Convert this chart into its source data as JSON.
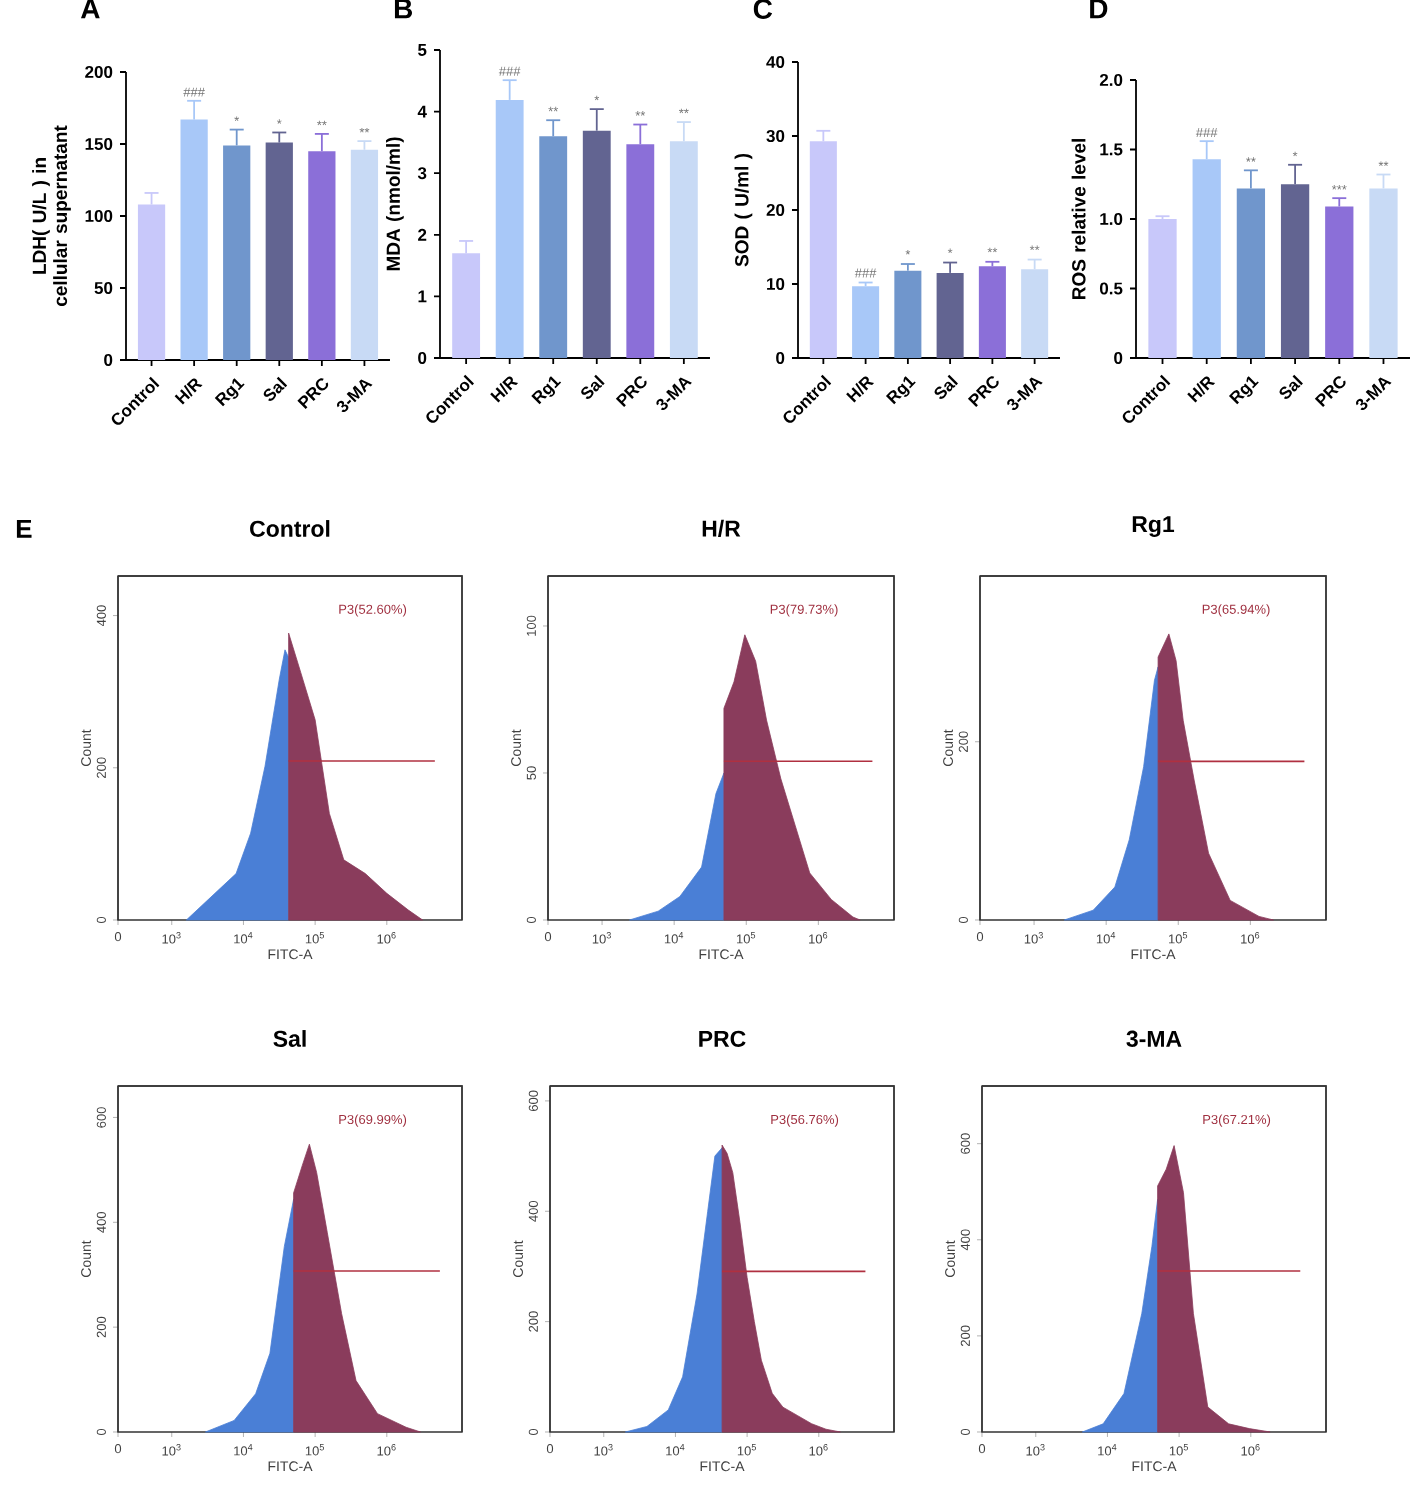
{
  "chart_data": [
    {
      "type": "bar",
      "title": "A",
      "ylabel": "LDH( U/L ) in cellular supernatant",
      "categories": [
        "Control",
        "H/R",
        "Rg1",
        "Sal",
        "PRC",
        "3-MA"
      ],
      "values": [
        108,
        167,
        149,
        151,
        145,
        146
      ],
      "colors": [
        "#c8c8fa",
        "#a8c8f8",
        "#7096cc",
        "#626491",
        "#8b6fd8",
        "#c8daf5"
      ],
      "errors": [
        [
          108,
          116
        ],
        [
          167,
          180
        ],
        [
          149,
          160
        ],
        [
          151,
          158
        ],
        [
          145,
          157
        ],
        [
          146,
          152
        ]
      ],
      "ylim": [
        0,
        200
      ],
      "yticks": [
        0,
        50,
        100,
        150,
        200
      ],
      "annotations": [
        {
          "text": "###",
          "x": "H/R",
          "y": 182
        },
        {
          "text": "*",
          "x": "Rg1",
          "y": 162
        },
        {
          "text": "*",
          "x": "Sal",
          "y": 160
        },
        {
          "text": "**",
          "x": "PRC",
          "y": 159
        },
        {
          "text": "**",
          "x": "3-MA",
          "y": 154
        }
      ]
    },
    {
      "type": "bar",
      "title": "B",
      "ylabel": "MDA (nmol/ml)",
      "categories": [
        "Control",
        "H/R",
        "Rg1",
        "Sal",
        "PRC",
        "3-MA"
      ],
      "values": [
        1.7,
        4.19,
        3.6,
        3.69,
        3.47,
        3.52
      ],
      "colors": [
        "#c8c8fa",
        "#a8c8f8",
        "#7096cc",
        "#626491",
        "#8b6fd8",
        "#c8daf5"
      ],
      "errors": [
        [
          1.7,
          1.9
        ],
        [
          4.19,
          4.51
        ],
        [
          3.6,
          3.86
        ],
        [
          3.69,
          4.04
        ],
        [
          3.47,
          3.79
        ],
        [
          3.52,
          3.83
        ]
      ],
      "ylim": [
        0,
        5
      ],
      "yticks": [
        0,
        1,
        2,
        3,
        4,
        5
      ],
      "annotations": [
        {
          "text": "###",
          "x": "H/R",
          "y": 4.56
        },
        {
          "text": "**",
          "x": "Rg1",
          "y": 3.91
        },
        {
          "text": "*",
          "x": "Sal",
          "y": 4.09
        },
        {
          "text": "**",
          "x": "PRC",
          "y": 3.84
        },
        {
          "text": "**",
          "x": "3-MA",
          "y": 3.88
        }
      ]
    },
    {
      "type": "bar",
      "title": "C",
      "ylabel": "SOD ( U/ml )",
      "categories": [
        "Control",
        "H/R",
        "Rg1",
        "Sal",
        "PRC",
        "3-MA"
      ],
      "values": [
        29.3,
        9.7,
        11.8,
        11.5,
        12.4,
        12.0
      ],
      "colors": [
        "#c8c8fa",
        "#a8c8f8",
        "#7096cc",
        "#626491",
        "#8b6fd8",
        "#c8daf5"
      ],
      "errors": [
        [
          29.3,
          30.7
        ],
        [
          9.7,
          10.2
        ],
        [
          11.8,
          12.7
        ],
        [
          11.5,
          12.9
        ],
        [
          12.4,
          13.0
        ],
        [
          12.0,
          13.3
        ]
      ],
      "ylim": [
        0,
        40
      ],
      "yticks": [
        0,
        10,
        20,
        30,
        40
      ],
      "annotations": [
        {
          "text": "###",
          "x": "H/R",
          "y": 10.7
        },
        {
          "text": "*",
          "x": "Rg1",
          "y": 13.2
        },
        {
          "text": "*",
          "x": "Sal",
          "y": 13.4
        },
        {
          "text": "**",
          "x": "PRC",
          "y": 13.5
        },
        {
          "text": "**",
          "x": "3-MA",
          "y": 13.8
        }
      ]
    },
    {
      "type": "bar",
      "title": "D",
      "ylabel": "ROS relative level",
      "categories": [
        "Control",
        "H/R",
        "Rg1",
        "Sal",
        "PRC",
        "3-MA"
      ],
      "values": [
        1.0,
        1.43,
        1.22,
        1.25,
        1.09,
        1.22
      ],
      "colors": [
        "#c8c8fa",
        "#a8c8f8",
        "#7096cc",
        "#626491",
        "#8b6fd8",
        "#c8daf5"
      ],
      "errors": [
        [
          1.0,
          1.02
        ],
        [
          1.43,
          1.56
        ],
        [
          1.22,
          1.35
        ],
        [
          1.25,
          1.39
        ],
        [
          1.09,
          1.15
        ],
        [
          1.22,
          1.32
        ]
      ],
      "ylim": [
        0,
        2
      ],
      "yticks": [
        0,
        0.5,
        {
          "value": 1,
          "label": "1.0"
        },
        1.5,
        {
          "value": 2,
          "label": "2.0"
        }
      ],
      "annotations": [
        {
          "text": "###",
          "x": "H/R",
          "y": 1.58
        },
        {
          "text": "**",
          "x": "Rg1",
          "y": 1.37
        },
        {
          "text": "*",
          "x": "Sal",
          "y": 1.41
        },
        {
          "text": "***",
          "x": "PRC",
          "y": 1.17
        },
        {
          "text": "**",
          "x": "3-MA",
          "y": 1.34
        }
      ]
    },
    {
      "type": "area",
      "title": "Control",
      "xlabel": "FITC-A",
      "ylabel": "Count",
      "log": "x",
      "xlim": [
        0,
        11200000
      ],
      "ylim": [
        0,
        452
      ],
      "xticks": [
        0,
        {
          "value": 1000,
          "label": "10$^{3}$"
        },
        {
          "value": 10000,
          "label": "10$^{4}$"
        },
        {
          "value": 100000,
          "label": "10$^{5}$"
        },
        {
          "value": 1000000,
          "label": "10$^{6}$"
        }
      ],
      "yticks": [
        0,
        200,
        400
      ],
      "series": [
        {
          "color": "#4a7fd6",
          "x": [
            1600,
            4000,
            7900,
            12600,
            20000,
            31600,
            38000,
            42700
          ],
          "values": [
            0,
            35,
            61,
            114,
            202,
            316,
            355,
            345
          ]
        },
        {
          "color": "#8a3c5c",
          "x": [
            42700,
            63100,
            100000,
            158000,
            251000,
            501000,
            1000000,
            2000000,
            3160000
          ],
          "values": [
            377,
            325,
            263,
            140,
            79,
            61,
            35,
            13,
            0
          ]
        },
        {
          "type": "line",
          "color": "#b03040",
          "x": [
            42700,
            4680000
          ],
          "values": [
            209,
            209
          ]
        }
      ],
      "annotations": [
        "E",
        "P3(52.60%)"
      ]
    },
    {
      "type": "area",
      "title": "H/R",
      "xlabel": "FITC-A",
      "ylabel": "Count",
      "log": "x",
      "xlim": [
        0,
        11200000
      ],
      "ylim": [
        0,
        117
      ],
      "xticks": [
        0,
        {
          "value": 1000,
          "label": "10$^{3}$"
        },
        {
          "value": 10000,
          "label": "10$^{4}$"
        },
        {
          "value": 100000,
          "label": "10$^{5}$"
        },
        {
          "value": 1000000,
          "label": "10$^{6}$"
        }
      ],
      "yticks": [
        0,
        50,
        100
      ],
      "series": [
        {
          "color": "#4a7fd6",
          "x": [
            2400,
            6000,
            12000,
            24000,
            38000,
            49000
          ],
          "values": [
            0,
            3,
            8,
            18,
            43,
            50
          ]
        },
        {
          "color": "#8a3c5c",
          "x": [
            49000,
            67600,
            95500,
            135000,
            191000,
            302000,
            479000,
            759000,
            1510000,
            3020000,
            3800000
          ],
          "values": [
            72,
            81,
            97,
            88,
            68,
            48,
            32,
            16,
            7,
            1,
            0
          ]
        },
        {
          "type": "line",
          "color": "#b03040",
          "x": [
            49000,
            5620000
          ],
          "values": [
            54,
            54
          ]
        }
      ],
      "annotations": [
        "P3(79.73%)"
      ]
    },
    {
      "type": "area",
      "title": "Rg1",
      "xlabel": "FITC-A",
      "ylabel": "Count",
      "log": "x",
      "xlim": [
        0,
        11200000
      ],
      "ylim": [
        0,
        386
      ],
      "xticks": [
        0,
        {
          "value": 1000,
          "label": "10$^{3}$"
        },
        {
          "value": 10000,
          "label": "10$^{4}$"
        },
        {
          "value": 100000,
          "label": "10$^{5}$"
        },
        {
          "value": 1000000,
          "label": "10$^{6}$"
        }
      ],
      "yticks": [
        0,
        200
      ],
      "series": [
        {
          "color": "#4a7fd6",
          "x": [
            2630,
            6610,
            13200,
            20900,
            33100,
            46800,
            52500
          ],
          "values": [
            0,
            11,
            37,
            90,
            172,
            269,
            284
          ]
        },
        {
          "color": "#8a3c5c",
          "x": [
            52500,
            74100,
            93300,
            117000,
            166000,
            263000,
            525000,
            1320000,
            2090000
          ],
          "values": [
            295,
            321,
            291,
            224,
            157,
            75,
            22,
            4,
            0
          ]
        },
        {
          "type": "line",
          "color": "#b03040",
          "x": [
            52500,
            5620000
          ],
          "values": [
            178,
            178
          ]
        }
      ],
      "annotations": [
        "P3(65.94%)"
      ]
    },
    {
      "type": "area",
      "title": "Sal",
      "xlabel": "FITC-A",
      "ylabel": "Count",
      "log": "x",
      "xlim": [
        0,
        11200000
      ],
      "ylim": [
        0,
        660
      ],
      "xticks": [
        0,
        {
          "value": 1000,
          "label": "10$^{3}$"
        },
        {
          "value": 10000,
          "label": "10$^{4}$"
        },
        {
          "value": 100000,
          "label": "10$^{5}$"
        },
        {
          "value": 1000000,
          "label": "10$^{6}$"
        }
      ],
      "yticks": [
        0,
        200,
        400,
        600
      ],
      "series": [
        {
          "color": "#4a7fd6",
          "x": [
            2950,
            7410,
            14800,
            23400,
            37200,
            50100
          ],
          "values": [
            0,
            22,
            73,
            150,
            354,
            444
          ]
        },
        {
          "color": "#8a3c5c",
          "x": [
            50100,
            66100,
            83200,
            105000,
            148000,
            234000,
            372000,
            741000,
            1860000,
            2950000
          ],
          "values": [
            456,
            508,
            549,
            495,
            380,
            226,
            98,
            35,
            9,
            0
          ]
        },
        {
          "type": "line",
          "color": "#b03040",
          "x": [
            50100,
            5500000
          ],
          "values": [
            307,
            307
          ]
        }
      ],
      "annotations": [
        "P3(69.99%)"
      ]
    },
    {
      "type": "area",
      "title": "PRC",
      "xlabel": "FITC-A",
      "ylabel": "Count",
      "log": "x",
      "xlim": [
        0,
        11200000
      ],
      "ylim": [
        0,
        627
      ],
      "xticks": [
        0,
        {
          "value": 1000,
          "label": "10$^{3}$"
        },
        {
          "value": 10000,
          "label": "10$^{4}$"
        },
        {
          "value": 100000,
          "label": "10$^{5}$"
        },
        {
          "value": 1000000,
          "label": "10$^{6}$"
        }
      ],
      "yticks": [
        0,
        200,
        400,
        600
      ],
      "series": [
        {
          "color": "#4a7fd6",
          "x": [
            2000,
            4000,
            7940,
            12600,
            20000,
            28200,
            35500,
            44700
          ],
          "values": [
            0,
            10,
            40,
            100,
            250,
            400,
            500,
            515
          ]
        },
        {
          "color": "#8a3c5c",
          "x": [
            44700,
            52500,
            63100,
            79400,
            100000,
            126000,
            158000,
            224000,
            316000,
            501000,
            794000,
            1260000,
            2000000
          ],
          "values": [
            520,
            505,
            470,
            380,
            280,
            200,
            130,
            70,
            45,
            30,
            15,
            5,
            0
          ]
        },
        {
          "type": "line",
          "color": "#b03040",
          "x": [
            44700,
            4470000
          ],
          "values": [
            291,
            291
          ]
        }
      ],
      "annotations": [
        "P3(56.76%)"
      ]
    },
    {
      "type": "area",
      "title": "3-MA",
      "xlabel": "FITC-A",
      "ylabel": "Count",
      "log": "x",
      "xlim": [
        0,
        11200000
      ],
      "ylim": [
        0,
        720
      ],
      "xticks": [
        0,
        {
          "value": 1000,
          "label": "10$^{3}$"
        },
        {
          "value": 10000,
          "label": "10$^{4}$"
        },
        {
          "value": 100000,
          "label": "10$^{5}$"
        },
        {
          "value": 1000000,
          "label": "10$^{6}$"
        }
      ],
      "yticks": [
        0,
        200,
        400,
        600
      ],
      "series": [
        {
          "color": "#4a7fd6",
          "x": [
            4470,
            8710,
            17000,
            30200,
            41700,
            50100
          ],
          "values": [
            0,
            17,
            80,
            247,
            386,
            484
          ]
        },
        {
          "color": "#8a3c5c",
          "x": [
            50100,
            66100,
            85100,
            115000,
            158000,
            251000,
            490000,
            955000,
            1860000
          ],
          "values": [
            512,
            547,
            596,
            498,
            247,
            52,
            17,
            7,
            0
          ]
        },
        {
          "type": "line",
          "color": "#b03040",
          "x": [
            50100,
            4900000
          ],
          "values": [
            335,
            335
          ]
        }
      ],
      "annotations": [
        "P3(67.21%)"
      ]
    }
  ]
}
